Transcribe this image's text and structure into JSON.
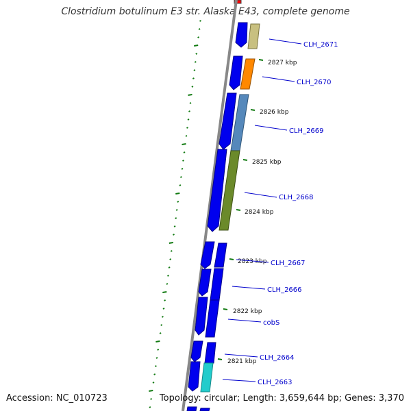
{
  "title": "Clostridium botulinum E3 str. Alaska E43, complete genome",
  "accession": "Accession: NC_010723",
  "topology": "Topology: circular; Length: 3,659,644 bp; Genes: 3,370",
  "colors": {
    "forward_cds": "#0000ee",
    "backbone": "#888888",
    "tick": "#117a11",
    "label_line": "#0000cc",
    "highlight_red": "#ff0000"
  },
  "kbp_markers": [
    "2827 kbp",
    "2826 kbp",
    "2825 kbp",
    "2824 kbp",
    "2823 kbp",
    "2822 kbp",
    "2821 kbp"
  ],
  "gene_labels": [
    "CLH_2671",
    "CLH_2670",
    "CLH_2669",
    "CLH_2668",
    "CLH_2667",
    "CLH_2666",
    "cobS",
    "CLH_2664",
    "CLH_2663"
  ],
  "gene_colors": {
    "CLH_2671": "#c8c080",
    "CLH_2670": "#ff8800",
    "CLH_2669": "#5588bb",
    "CLH_2668": "#6b8a2a",
    "CLH_2663": "#22cccc"
  }
}
